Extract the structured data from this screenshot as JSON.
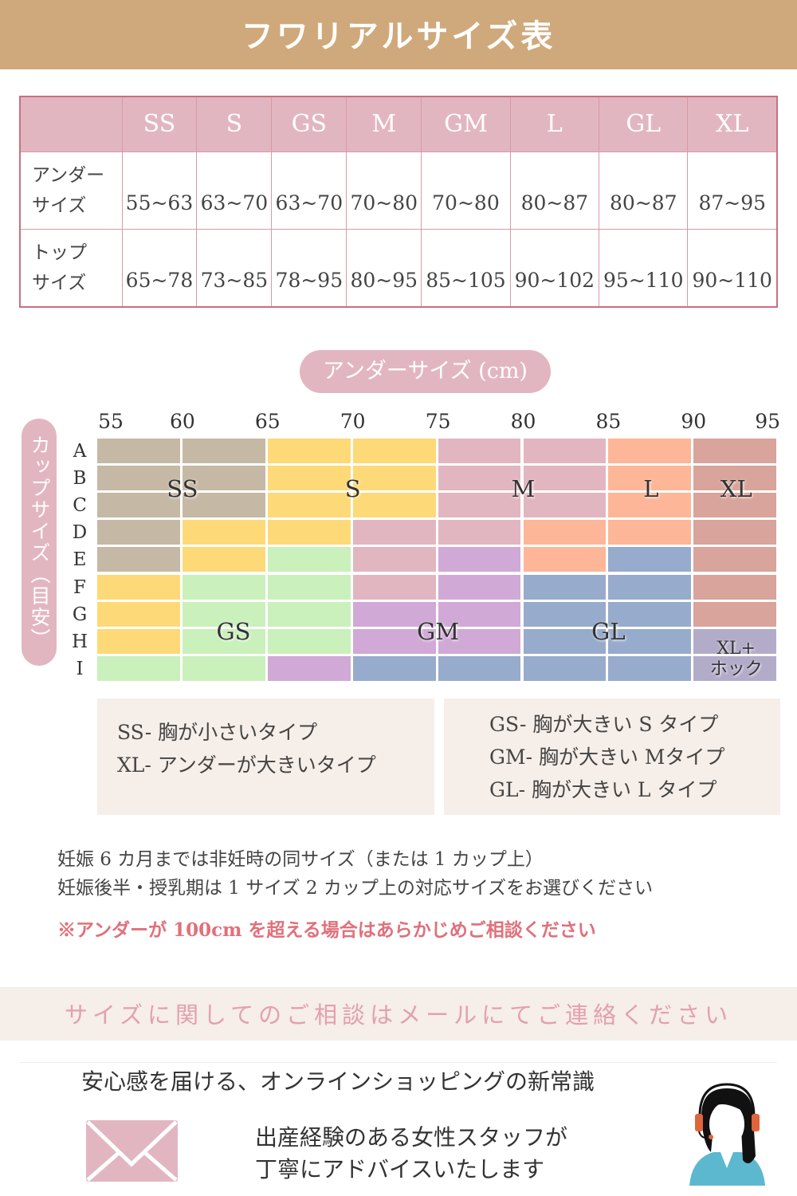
{
  "title": "フワリアルサイズ表",
  "table": {
    "headers": [
      "SS",
      "S",
      "GS",
      "M",
      "GM",
      "L",
      "GL",
      "XL"
    ],
    "rows": [
      {
        "label_line1": "アンダー",
        "label_line2": "サイズ",
        "values": [
          "55~63",
          "63~70",
          "63~70",
          "70~80",
          "70~80",
          "80~87",
          "80~87",
          "87~95"
        ]
      },
      {
        "label_line1": "トップ",
        "label_line2": "サイズ",
        "values": [
          "65~78",
          "73~85",
          "78~95",
          "80~95",
          "85~105",
          "90~102",
          "95~110",
          "90~110"
        ]
      }
    ]
  },
  "chart_data": {
    "type": "heatmap",
    "xlabel": "アンダーサイズ (cm)",
    "ylabel": "カップサイズ（目安）",
    "x_ticks": [
      "55",
      "60",
      "65",
      "70",
      "75",
      "80",
      "85",
      "90",
      "95"
    ],
    "y_ticks": [
      "A",
      "B",
      "C",
      "D",
      "E",
      "F",
      "G",
      "H",
      "I"
    ],
    "colors": {
      "SS": "#c5b9a5",
      "S": "#fdd977",
      "M": "#e2b6c0",
      "L": "#fdb697",
      "XL": "#d8a49b",
      "GS": "#caf0bc",
      "GM": "#d0a9d6",
      "GL": "#97abcc",
      "XL+ホック": "#b3acc9"
    },
    "cells": [
      [
        "SS",
        "SS",
        "S",
        "S",
        "M",
        "M",
        "L",
        "XL"
      ],
      [
        "SS",
        "SS",
        "S",
        "S",
        "M",
        "M",
        "L",
        "XL"
      ],
      [
        "SS",
        "SS",
        "S",
        "S",
        "M",
        "M",
        "L",
        "XL"
      ],
      [
        "SS",
        "S",
        "S",
        "M",
        "M",
        "L",
        "L",
        "XL"
      ],
      [
        "SS",
        "S",
        "GS",
        "M",
        "GM",
        "L",
        "GL",
        "XL"
      ],
      [
        "S",
        "GS",
        "GS",
        "M",
        "GM",
        "GL",
        "GL",
        "XL"
      ],
      [
        "S",
        "GS",
        "GS",
        "GM",
        "GM",
        "GL",
        "GL",
        "XL"
      ],
      [
        "S",
        "GS",
        "GS",
        "GM",
        "GM",
        "GL",
        "GL",
        "XL+ホック"
      ],
      [
        "GS",
        "GS",
        "GM",
        "GL",
        "GL",
        "GL",
        "GL",
        "XL+ホック"
      ]
    ],
    "zone_labels": {
      "SS": "SS",
      "S": "S",
      "M": "M",
      "L": "L",
      "XL": "XL",
      "GS": "GS",
      "GM": "GM",
      "GL": "GL",
      "XLH1": "XL+",
      "XLH2": "ホック"
    }
  },
  "legend_left": [
    "SS- 胸が小さいタイプ",
    "XL- アンダーが大きいタイプ"
  ],
  "legend_right": [
    "GS- 胸が大きい S タイプ",
    "GM- 胸が大きい Mタイプ",
    "GL- 胸が大きい L タイプ"
  ],
  "notes": [
    "妊娠 6 カ月までは非妊時の同サイズ（または 1 カップ上）",
    "妊娠後半・授乳期は 1 サイズ 2 カップ上の対応サイズをお選びください"
  ],
  "warning": "※アンダーが 100cm を超える場合はあらかじめご相談ください",
  "warning_color": "#e0707a",
  "contact_band": "サイズに関してのご相談はメールにてご連絡ください",
  "footer": {
    "tagline": "安心感を届ける、オンラインショッピングの新常識",
    "line1": "出産経験のある女性スタッフが",
    "line2": "丁寧にアドバイスいたします"
  }
}
